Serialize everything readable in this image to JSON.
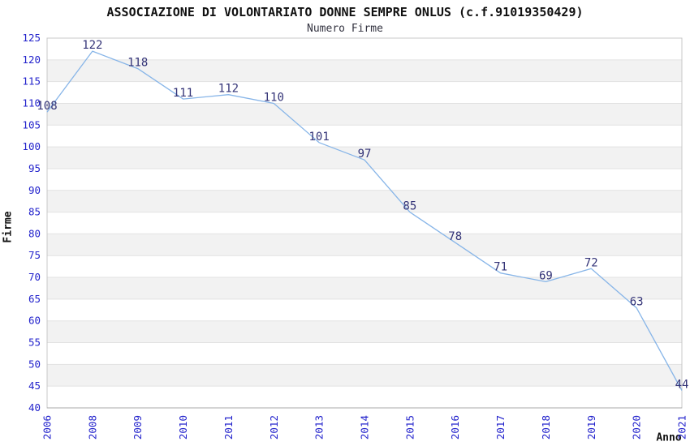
{
  "page": {
    "background": "#ffffff"
  },
  "chart_data": {
    "type": "line",
    "title": "ASSOCIAZIONE DI VOLONTARIATO DONNE SEMPRE ONLUS (c.f.91019350429)",
    "subtitle": "Numero Firme",
    "xlabel": "Anno",
    "ylabel": "Firme",
    "categories": [
      "2006",
      "2008",
      "2009",
      "2010",
      "2011",
      "2012",
      "2013",
      "2014",
      "2015",
      "2016",
      "2017",
      "2018",
      "2019",
      "2020",
      "2021"
    ],
    "values": [
      108,
      122,
      118,
      111,
      112,
      110,
      101,
      97,
      85,
      78,
      71,
      69,
      72,
      63,
      44
    ],
    "ylim": [
      40,
      125
    ],
    "y_tick_step": 5,
    "grid": true,
    "legend": "none",
    "x_tick_rotation": -90,
    "band_colors": [
      "#ffffff",
      "#f2f2f2"
    ],
    "colors": {
      "line": "#87b5e8",
      "tick_label": "#2323cc",
      "data_label": "#333377",
      "grid_line": "#e2e2e2",
      "plot_border": "#c8c8c8",
      "axis_line": "#a8a8a8",
      "title": "#111111",
      "subtitle": "#333340",
      "axis_title": "#111111"
    }
  }
}
